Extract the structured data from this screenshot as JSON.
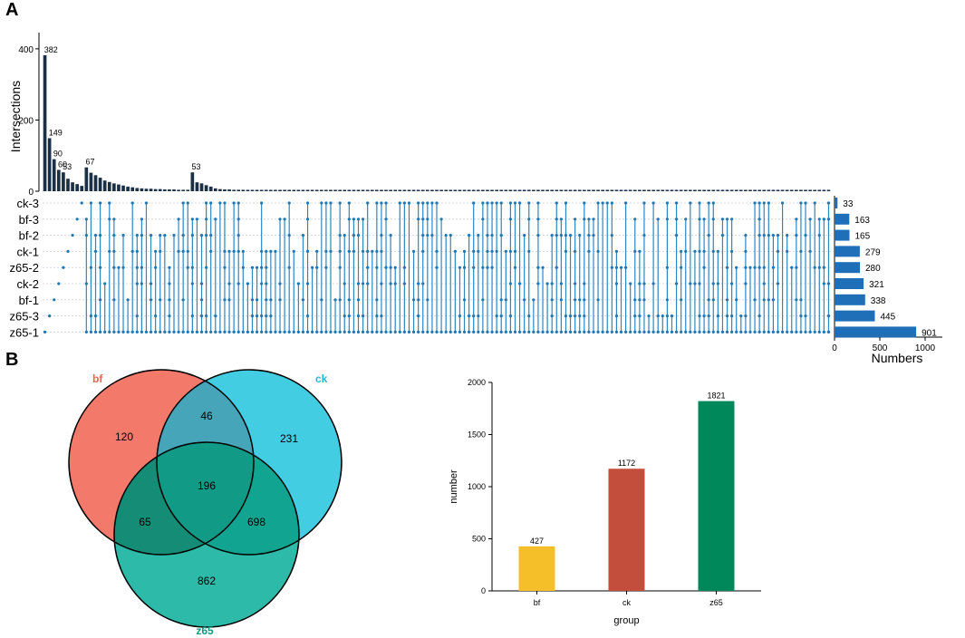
{
  "panel_labels": {
    "a": "A",
    "b": "B"
  },
  "chart_data": [
    {
      "type": "bar",
      "subtype": "upset",
      "ylabel": "Intersections",
      "yticks": [
        0,
        200,
        400
      ],
      "ylim": [
        0,
        420
      ],
      "intersection_labels": [
        "382",
        "149",
        "90",
        "60",
        "53",
        "67",
        "53"
      ],
      "intersection_sizes": [
        382,
        149,
        90,
        60,
        53,
        35,
        25,
        20,
        15,
        67,
        52,
        45,
        38,
        30,
        26,
        22,
        19,
        16,
        13,
        11,
        9,
        8,
        7,
        7,
        6,
        6,
        5,
        5,
        5,
        4,
        4,
        4,
        53,
        25,
        22,
        17,
        13,
        8,
        6,
        5,
        5,
        4,
        4,
        4,
        3,
        3,
        3,
        3,
        3,
        3,
        3,
        3,
        3,
        3,
        3,
        3,
        3,
        3,
        3,
        3,
        3,
        3,
        3,
        3,
        3,
        3,
        3,
        3,
        3,
        3,
        3,
        3,
        3,
        3,
        3,
        3,
        3,
        3,
        3,
        3,
        3,
        3,
        3,
        3,
        3,
        3,
        3,
        3,
        3,
        3,
        3,
        3,
        3,
        3,
        3,
        3,
        3,
        3,
        3,
        3,
        3,
        3,
        3,
        3,
        3,
        3,
        3,
        3,
        3,
        3,
        3,
        3,
        3,
        3,
        3,
        3,
        3,
        3,
        3,
        3,
        3,
        3,
        3,
        3,
        3,
        3,
        3,
        3,
        3,
        3,
        3,
        3,
        3,
        3,
        3,
        3,
        3,
        3,
        3,
        3,
        3,
        3,
        3,
        3,
        3,
        3,
        3,
        3,
        3,
        3,
        3,
        3,
        3,
        3,
        3,
        3,
        3,
        3,
        3,
        3,
        3,
        3,
        3,
        3,
        3,
        3,
        3,
        3,
        3,
        3,
        3
      ],
      "sets": [
        "ck-3",
        "bf-3",
        "bf-2",
        "ck-1",
        "z65-2",
        "ck-2",
        "bf-1",
        "z65-3",
        "z65-1"
      ],
      "set_sizes": [
        33,
        163,
        165,
        279,
        280,
        321,
        338,
        445,
        901
      ],
      "set_size_labels": [
        "33",
        "163",
        "165",
        "279",
        "280",
        "321",
        "338",
        "445",
        "901"
      ],
      "set_xlabel": "Numbers",
      "set_xticks": [
        0,
        500,
        1000
      ]
    },
    {
      "type": "venn",
      "sets": [
        {
          "name": "bf",
          "color": "#f26c5a"
        },
        {
          "name": "ck",
          "color": "#2fc8e0"
        },
        {
          "name": "z65",
          "color": "#16b29e"
        }
      ],
      "regions": {
        "bf_only": "120",
        "ck_only": "231",
        "z65_only": "862",
        "bf_ck": "46",
        "bf_z65": "65",
        "ck_z65": "698",
        "all": "196"
      }
    },
    {
      "type": "bar",
      "categories": [
        "bf",
        "ck",
        "z65"
      ],
      "values": [
        427,
        1172,
        1821
      ],
      "value_labels": [
        "427",
        "1172",
        "1821"
      ],
      "colors": [
        "#f5bf2a",
        "#c44e3c",
        "#00885a"
      ],
      "xlabel": "group",
      "ylabel": "number",
      "ylim": [
        0,
        2000
      ],
      "yticks": [
        0,
        500,
        1000,
        1500,
        2000
      ]
    }
  ]
}
